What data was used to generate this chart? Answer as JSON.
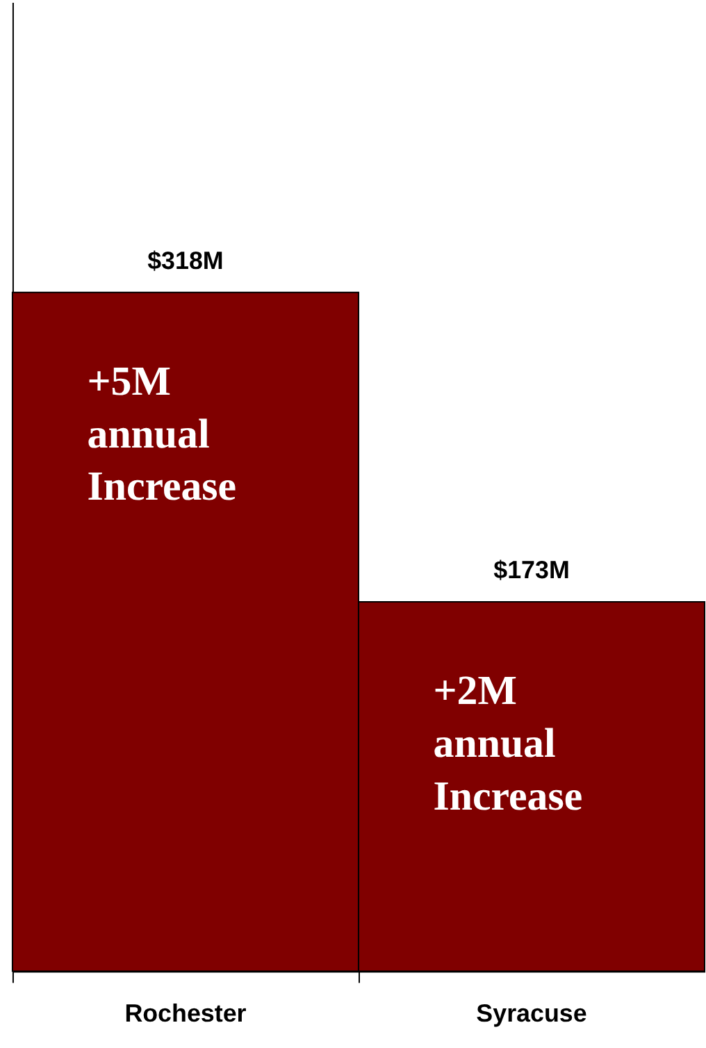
{
  "chart_data": {
    "type": "bar",
    "categories": [
      "Rochester",
      "Syracuse"
    ],
    "values": [
      318,
      173
    ],
    "value_labels": [
      "$318M",
      "$173M"
    ],
    "color": "#800000",
    "ylim": [
      0,
      454
    ],
    "grid": false,
    "annotations": [
      "+5M annual Increase",
      "+2M annual Increase"
    ]
  }
}
